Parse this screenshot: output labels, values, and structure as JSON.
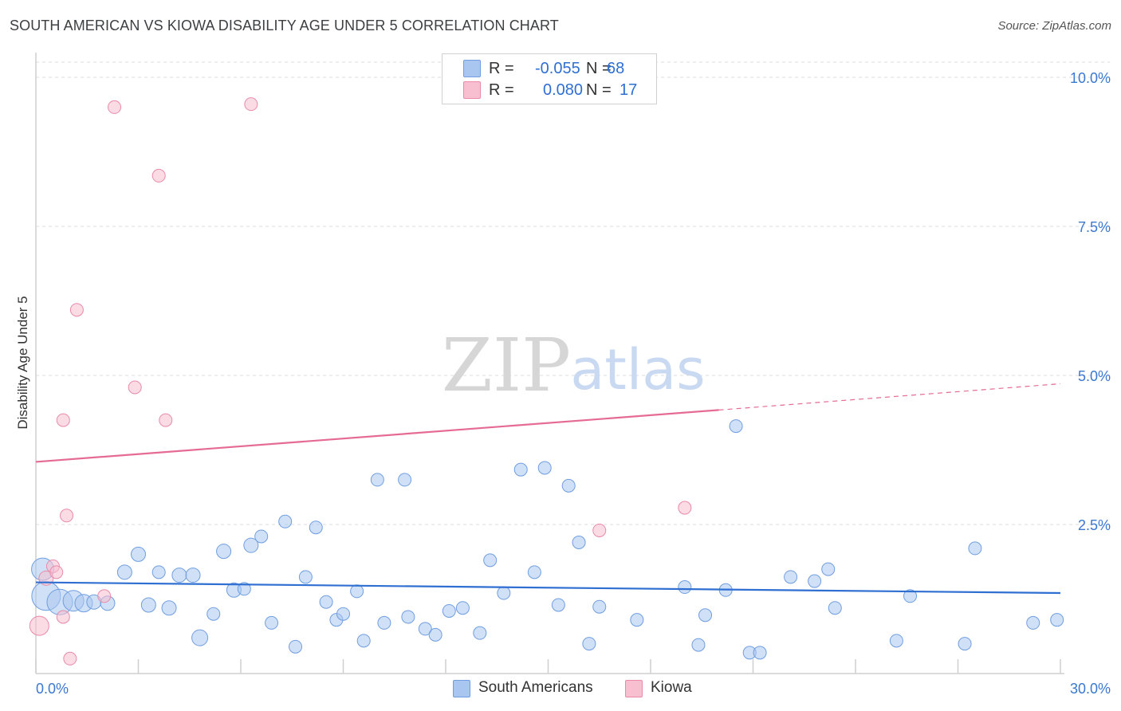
{
  "header": {
    "title": "SOUTH AMERICAN VS KIOWA DISABILITY AGE UNDER 5 CORRELATION CHART",
    "source": "Source: ZipAtlas.com"
  },
  "watermark": {
    "zip": "ZIP",
    "atlas": "atlas"
  },
  "legend_top": {
    "rows": [
      {
        "r_label": "R =",
        "r_value": "-0.055",
        "n_label": "N =",
        "n_value": "68",
        "color": "#a9c6f0",
        "border": "#6f9ee0"
      },
      {
        "r_label": "R =",
        "r_value": "0.080",
        "n_label": "N =",
        "n_value": "17",
        "color": "#f7bfd0",
        "border": "#e98aa8"
      }
    ]
  },
  "legend_bottom": {
    "items": [
      {
        "label": "South Americans",
        "color": "#a9c6f0",
        "border": "#6f9ee0"
      },
      {
        "label": "Kiowa",
        "color": "#f7bfd0",
        "border": "#e98aa8"
      }
    ]
  },
  "chart_data": {
    "type": "scatter",
    "title": "SOUTH AMERICAN VS KIOWA DISABILITY AGE UNDER 5 CORRELATION CHART",
    "xlabel": "",
    "ylabel": "Disability Age Under 5",
    "xlim": [
      0,
      30
    ],
    "ylim": [
      0,
      10.4
    ],
    "x_tick_labels": [
      "0.0%",
      "30.0%"
    ],
    "y_ticks": [
      2.5,
      5.0,
      7.5,
      10.0
    ],
    "y_tick_labels": [
      "2.5%",
      "5.0%",
      "7.5%",
      "10.0%"
    ],
    "grid": true,
    "colors": {
      "south_american": "#2f6fd1",
      "kiowa": "#e56b93",
      "tick_label": "#3b78d0"
    },
    "series": [
      {
        "name": "South Americans",
        "points": [
          [
            0.2,
            1.75,
            14
          ],
          [
            0.3,
            1.3,
            18
          ],
          [
            0.7,
            1.2,
            16
          ],
          [
            1.1,
            1.22,
            13
          ],
          [
            1.4,
            1.18,
            11
          ],
          [
            1.7,
            1.2,
            9
          ],
          [
            2.1,
            1.18,
            9
          ],
          [
            3.0,
            2.0,
            9
          ],
          [
            2.6,
            1.7,
            9
          ],
          [
            3.3,
            1.15,
            9
          ],
          [
            3.6,
            1.7,
            8
          ],
          [
            3.9,
            1.1,
            9
          ],
          [
            4.2,
            1.65,
            9
          ],
          [
            4.6,
            1.65,
            9
          ],
          [
            4.8,
            0.6,
            10
          ],
          [
            5.2,
            1.0,
            8
          ],
          [
            5.5,
            2.05,
            9
          ],
          [
            5.8,
            1.4,
            9
          ],
          [
            6.1,
            1.42,
            8
          ],
          [
            6.3,
            2.15,
            9
          ],
          [
            6.6,
            2.3,
            8
          ],
          [
            6.9,
            0.85,
            8
          ],
          [
            7.3,
            2.55,
            8
          ],
          [
            7.6,
            0.45,
            8
          ],
          [
            7.9,
            1.62,
            8
          ],
          [
            8.2,
            2.45,
            8
          ],
          [
            8.5,
            1.2,
            8
          ],
          [
            8.8,
            0.9,
            8
          ],
          [
            9.0,
            1.0,
            8
          ],
          [
            9.4,
            1.38,
            8
          ],
          [
            9.6,
            0.55,
            8
          ],
          [
            10.0,
            3.25,
            8
          ],
          [
            10.2,
            0.85,
            8
          ],
          [
            10.8,
            3.25,
            8
          ],
          [
            10.9,
            0.95,
            8
          ],
          [
            11.4,
            0.75,
            8
          ],
          [
            11.7,
            0.65,
            8
          ],
          [
            12.1,
            1.05,
            8
          ],
          [
            12.5,
            1.1,
            8
          ],
          [
            13.0,
            0.68,
            8
          ],
          [
            13.3,
            1.9,
            8
          ],
          [
            13.7,
            1.35,
            8
          ],
          [
            14.2,
            3.42,
            8
          ],
          [
            14.6,
            1.7,
            8
          ],
          [
            14.9,
            3.45,
            8
          ],
          [
            15.3,
            1.15,
            8
          ],
          [
            15.6,
            3.15,
            8
          ],
          [
            15.9,
            2.2,
            8
          ],
          [
            16.2,
            0.5,
            8
          ],
          [
            16.5,
            1.12,
            8
          ],
          [
            17.6,
            0.9,
            8
          ],
          [
            19.0,
            1.45,
            8
          ],
          [
            19.4,
            0.48,
            8
          ],
          [
            19.6,
            0.98,
            8
          ],
          [
            20.2,
            1.4,
            8
          ],
          [
            20.5,
            4.15,
            8
          ],
          [
            20.9,
            0.35,
            8
          ],
          [
            21.2,
            0.35,
            8
          ],
          [
            22.1,
            1.62,
            8
          ],
          [
            22.8,
            1.55,
            8
          ],
          [
            23.2,
            1.75,
            8
          ],
          [
            23.4,
            1.1,
            8
          ],
          [
            25.2,
            0.55,
            8
          ],
          [
            25.6,
            1.3,
            8
          ],
          [
            27.2,
            0.5,
            8
          ],
          [
            27.5,
            2.1,
            8
          ],
          [
            29.2,
            0.85,
            8
          ],
          [
            29.9,
            0.9,
            8
          ]
        ]
      },
      {
        "name": "Kiowa",
        "points": [
          [
            0.1,
            0.8,
            12
          ],
          [
            0.3,
            1.6,
            9
          ],
          [
            0.5,
            1.8,
            8
          ],
          [
            0.6,
            1.7,
            8
          ],
          [
            0.8,
            0.95,
            8
          ],
          [
            1.0,
            0.25,
            8
          ],
          [
            0.8,
            4.25,
            8
          ],
          [
            0.9,
            2.65,
            8
          ],
          [
            1.2,
            6.1,
            8
          ],
          [
            2.0,
            1.3,
            8
          ],
          [
            2.3,
            9.5,
            8
          ],
          [
            2.9,
            4.8,
            8
          ],
          [
            3.6,
            8.35,
            8
          ],
          [
            3.8,
            4.25,
            8
          ],
          [
            6.3,
            9.55,
            8
          ],
          [
            16.5,
            2.4,
            8
          ],
          [
            19.0,
            2.78,
            8
          ]
        ]
      }
    ],
    "trend_lines": [
      {
        "series": "South Americans",
        "x": [
          0,
          30
        ],
        "y": [
          1.53,
          1.35
        ],
        "style": "solid"
      },
      {
        "series": "Kiowa",
        "x": [
          0,
          20
        ],
        "y": [
          3.55,
          4.42
        ],
        "style": "solid"
      },
      {
        "series": "Kiowa",
        "x": [
          20,
          30
        ],
        "y": [
          4.42,
          4.86
        ],
        "style": "dashed"
      }
    ]
  }
}
